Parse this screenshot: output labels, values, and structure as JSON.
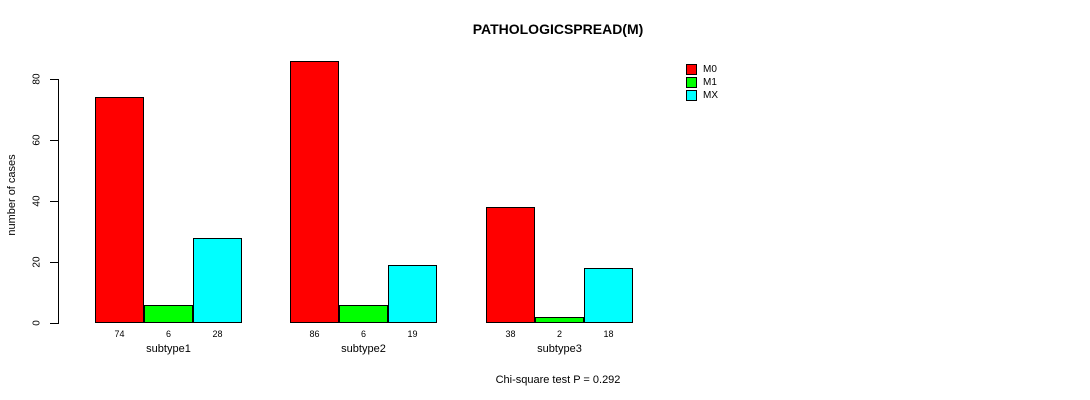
{
  "title": "PATHOLOGICSPREAD(M)",
  "footer_note": "Chi-square test P = 0.292",
  "y_axis": {
    "label": "number of cases",
    "ticks": [
      0,
      20,
      40,
      60,
      80
    ]
  },
  "legend": {
    "items": [
      {
        "label": "M0",
        "color": "#FF0000"
      },
      {
        "label": "M1",
        "color": "#00FF00"
      },
      {
        "label": "MX",
        "color": "#00FFFF"
      }
    ]
  },
  "chart_data": {
    "type": "bar",
    "title": "PATHOLOGICSPREAD(M)",
    "xlabel": "",
    "ylabel": "number of cases",
    "categories": [
      "subtype1",
      "subtype2",
      "subtype3"
    ],
    "series": [
      {
        "name": "M0",
        "color": "#FF0000",
        "values": [
          74,
          86,
          38
        ]
      },
      {
        "name": "M1",
        "color": "#00FF00",
        "values": [
          6,
          6,
          2
        ]
      },
      {
        "name": "MX",
        "color": "#00FFFF",
        "values": [
          28,
          19,
          18
        ]
      }
    ],
    "bar_value_labels": [
      [
        "74",
        "6",
        "28"
      ],
      [
        "86",
        "6",
        "19"
      ],
      [
        "38",
        "2",
        "18"
      ]
    ],
    "ylim": [
      0,
      80
    ],
    "yticks": [
      0,
      20,
      40,
      60,
      80
    ],
    "grid": false,
    "legend_position": "top-right",
    "annotation": "Chi-square test P = 0.292"
  }
}
